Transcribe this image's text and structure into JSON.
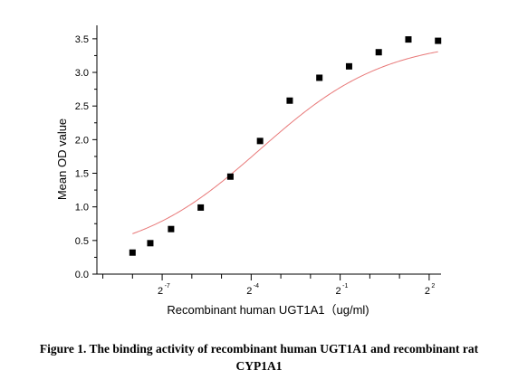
{
  "chart_data": {
    "type": "scatter",
    "xlabel": "Recombinant human UGT1A1（ug/ml)",
    "ylabel": "Mean OD value",
    "x_scale": "log2",
    "xlim": [
      -9.2,
      2.4
    ],
    "ylim": [
      0,
      3.7
    ],
    "x_tick_exponents": [
      -7,
      -4,
      -1,
      2
    ],
    "x_tick_labels": [
      {
        "base": "2",
        "exp": "-7"
      },
      {
        "base": "2",
        "exp": "-4"
      },
      {
        "base": "2",
        "exp": "-1"
      },
      {
        "base": "2",
        "exp": "2"
      }
    ],
    "y_ticks": [
      0.0,
      0.5,
      1.0,
      1.5,
      2.0,
      2.5,
      3.0,
      3.5
    ],
    "y_tick_labels": [
      "0.0",
      "0.5",
      "1.0",
      "1.5",
      "2.0",
      "2.5",
      "3.0",
      "3.5"
    ],
    "marker": "square",
    "marker_color": "#000000",
    "fit_curve": {
      "type": "4PL",
      "color": "#e87878",
      "bottom": 0.22,
      "top": 3.49,
      "ec50_log2": -3.7,
      "hill": 0.68
    },
    "points": [
      {
        "x_log2": -8.0,
        "y": 0.32
      },
      {
        "x_log2": -7.4,
        "y": 0.46
      },
      {
        "x_log2": -6.7,
        "y": 0.67
      },
      {
        "x_log2": -5.7,
        "y": 0.99
      },
      {
        "x_log2": -4.7,
        "y": 1.45
      },
      {
        "x_log2": -3.7,
        "y": 1.98
      },
      {
        "x_log2": -2.7,
        "y": 2.58
      },
      {
        "x_log2": -1.7,
        "y": 2.92
      },
      {
        "x_log2": -0.7,
        "y": 3.09
      },
      {
        "x_log2": 0.3,
        "y": 3.3
      },
      {
        "x_log2": 1.3,
        "y": 3.49
      },
      {
        "x_log2": 2.3,
        "y": 3.47
      }
    ]
  },
  "caption": {
    "line1": "Figure 1. The binding activity of recombinant human UGT1A1 and recombinant rat",
    "line2": "CYP1A1"
  }
}
